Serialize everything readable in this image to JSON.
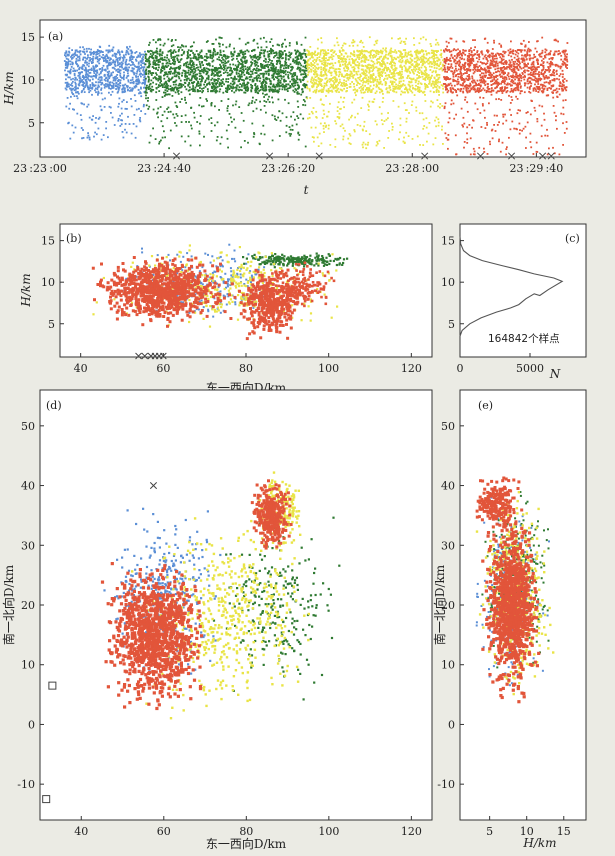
{
  "chart_data": [
    {
      "panel": "(a)",
      "type": "scatter",
      "xlabel": "t",
      "ylabel": "H/km",
      "xlim": [
        "23:23:00",
        "23:30:20"
      ],
      "ylim": [
        1,
        17
      ],
      "x_ticks": [
        "23:23:00",
        "23:24:40",
        "23:26:20",
        "23:28:00",
        "23:29:40"
      ],
      "y_ticks": [
        5,
        10,
        15
      ],
      "color_order": [
        "#5b8fd6",
        "#2f7a32",
        "#e9e447",
        "#e2553a"
      ],
      "series_time_ranges": [
        {
          "color": "#5b8fd6",
          "from": "23:23:20",
          "to": "23:24:25",
          "height_range_km": [
            3,
            14
          ]
        },
        {
          "color": "#2f7a32",
          "from": "23:24:25",
          "to": "23:26:35",
          "height_range_km": [
            2,
            15
          ]
        },
        {
          "color": "#e9e447",
          "from": "23:26:35",
          "to": "23:28:25",
          "height_range_km": [
            2,
            15
          ]
        },
        {
          "color": "#e2553a",
          "from": "23:28:25",
          "to": "23:30:05",
          "height_range_km": [
            1,
            15
          ]
        }
      ],
      "cross_markers_t": [
        "23:24:50",
        "23:26:05",
        "23:26:45",
        "23:28:10",
        "23:28:55",
        "23:29:20",
        "23:29:45",
        "23:29:52"
      ]
    },
    {
      "panel": "(b)",
      "type": "scatter",
      "xlabel": "东一西向D/km",
      "ylabel": "H/km",
      "xlim": [
        35,
        125
      ],
      "ylim": [
        1,
        17
      ],
      "x_ticks": [
        40,
        60,
        80,
        100,
        120
      ],
      "y_ticks": [
        5,
        10,
        15
      ],
      "cross_markers_x": [
        54,
        55.5,
        57,
        58,
        59,
        60
      ]
    },
    {
      "panel": "(c)",
      "type": "line",
      "xlabel": "N",
      "xlim": [
        0,
        9000
      ],
      "ylim": [
        1,
        17
      ],
      "x_ticks": [
        0,
        5000
      ],
      "y_ticks": [
        5,
        10,
        15
      ],
      "annotation": "164842个样点",
      "profile": {
        "N": [
          0,
          150,
          700,
          1500,
          2600,
          3600,
          4200,
          4700,
          5300,
          5700,
          6300,
          7300,
          6700,
          5300,
          4200,
          3000,
          1600,
          700,
          250,
          50,
          0
        ],
        "H": [
          3.5,
          4.2,
          5.0,
          5.7,
          6.4,
          6.9,
          7.3,
          8.0,
          8.6,
          8.4,
          9.1,
          10.1,
          10.5,
          11.0,
          11.5,
          12.0,
          12.6,
          13.2,
          13.8,
          14.6,
          15.5
        ]
      }
    },
    {
      "panel": "(d)",
      "type": "scatter",
      "xlabel": "东一西向D/km",
      "ylabel": "南一北向D/km",
      "xlim": [
        30,
        125
      ],
      "ylim": [
        -16,
        56
      ],
      "x_ticks": [
        40,
        60,
        80,
        100,
        120
      ],
      "y_ticks": [
        -10,
        0,
        10,
        20,
        30,
        40,
        50
      ],
      "cross_marker": {
        "x": 57.5,
        "y": 40
      },
      "square_markers": [
        {
          "x": 33,
          "y": 6.5
        },
        {
          "x": 31.5,
          "y": -12.5
        }
      ]
    },
    {
      "panel": "(e)",
      "type": "scatter",
      "xlabel": "H/km",
      "ylabel": "南一北向D/km",
      "xlim": [
        1,
        18
      ],
      "ylim": [
        -16,
        56
      ],
      "x_ticks": [
        5,
        10,
        15
      ],
      "y_ticks": [
        -10,
        0,
        10,
        20,
        30,
        40,
        50
      ]
    }
  ]
}
